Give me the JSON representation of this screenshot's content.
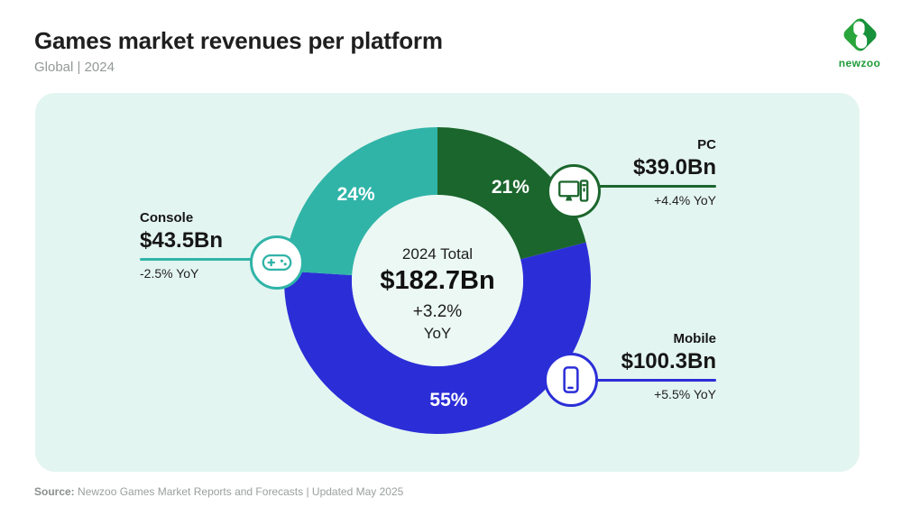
{
  "header": {
    "title": "Games market revenues per platform",
    "subtitle": "Global | 2024"
  },
  "logo": {
    "brand": "newzoo"
  },
  "chart_data": {
    "type": "pie",
    "variant": "donut",
    "title": "Games market revenues per platform",
    "subtitle": "Global | 2024",
    "unit": "USD billions",
    "direction": "clockwise",
    "start_angle_deg": 0,
    "legend_position": "callouts",
    "center": {
      "label": "2024 Total",
      "value": "$182.7Bn",
      "change": "+3.2%",
      "change_period": "YoY"
    },
    "series": [
      {
        "name": "PC",
        "percent": 21,
        "value": 39.0,
        "value_label": "$39.0Bn",
        "yoy_label": "+4.4% YoY",
        "color": "#1b662d",
        "icon": "desktop-computer-icon"
      },
      {
        "name": "Mobile",
        "percent": 55,
        "value": 100.3,
        "value_label": "$100.3Bn",
        "yoy_label": "+5.5% YoY",
        "color": "#2b2ed7",
        "icon": "smartphone-icon"
      },
      {
        "name": "Console",
        "percent": 24,
        "value": 43.5,
        "value_label": "$43.5Bn",
        "yoy_label": "-2.5% YoY",
        "color": "#30b4a8",
        "icon": "gamepad-icon"
      }
    ]
  },
  "colors": {
    "panel_bg": "#e3f5f0",
    "donut_hole": "#ebf8f4",
    "title_text": "#1f1f1f",
    "muted_text": "#939a98",
    "brand_green": "#1f9c39",
    "percent_label": "#ffffff"
  },
  "footer": {
    "source_label": "Source:",
    "source_text": " Newzoo Games Market Reports and Forecasts | Updated May 2025"
  }
}
